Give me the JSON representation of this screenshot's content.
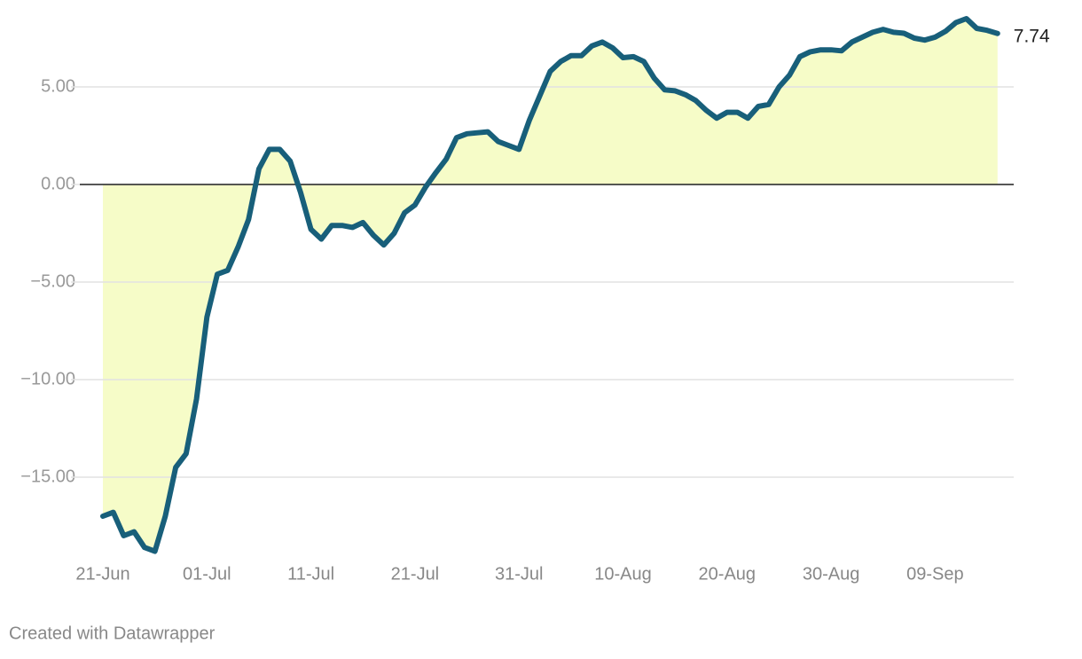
{
  "chart_data": {
    "type": "area-line",
    "categories": [
      "21-Jun",
      null,
      null,
      null,
      null,
      null,
      null,
      null,
      null,
      null,
      "01-Jul",
      null,
      null,
      null,
      null,
      null,
      null,
      null,
      null,
      null,
      "11-Jul",
      null,
      null,
      null,
      null,
      null,
      null,
      null,
      null,
      null,
      "21-Jul",
      null,
      null,
      null,
      null,
      null,
      null,
      null,
      null,
      null,
      "31-Jul",
      null,
      null,
      null,
      null,
      null,
      null,
      null,
      null,
      null,
      "10-Aug",
      null,
      null,
      null,
      null,
      null,
      null,
      null,
      null,
      null,
      "20-Aug",
      null,
      null,
      null,
      null,
      null,
      null,
      null,
      null,
      null,
      "30-Aug",
      null,
      null,
      null,
      null,
      null,
      null,
      null,
      null,
      null,
      "09-Sep",
      null,
      null,
      null,
      null,
      null,
      null
    ],
    "values": [
      -17.0,
      -16.8,
      -18.0,
      -17.8,
      -18.6,
      -18.8,
      -17.0,
      -14.5,
      -13.8,
      -11.0,
      -6.8,
      -4.6,
      -4.4,
      -3.2,
      -1.8,
      0.8,
      1.8,
      1.8,
      1.2,
      -0.4,
      -2.3,
      -2.8,
      -2.1,
      -2.1,
      -2.2,
      -1.95,
      -2.6,
      -3.1,
      -2.5,
      -1.45,
      -1.05,
      -0.15,
      0.6,
      1.3,
      2.4,
      2.6,
      2.65,
      2.7,
      2.2,
      2.0,
      1.8,
      3.3,
      4.55,
      5.8,
      6.3,
      6.6,
      6.6,
      7.1,
      7.3,
      7.0,
      6.5,
      6.55,
      6.3,
      5.45,
      4.85,
      4.8,
      4.6,
      4.3,
      3.8,
      3.4,
      3.7,
      3.7,
      3.4,
      4.0,
      4.1,
      5.0,
      5.6,
      6.55,
      6.8,
      6.9,
      6.9,
      6.85,
      7.3,
      7.55,
      7.8,
      7.95,
      7.8,
      7.75,
      7.5,
      7.4,
      7.55,
      7.85,
      8.3,
      8.5,
      8.0,
      7.9,
      7.74
    ],
    "color": "#185f7a",
    "fill_color": "#f6fcc8",
    "ylim": [
      -19,
      9
    ],
    "yticks": [
      {
        "value": -15,
        "label": "−15.00"
      },
      {
        "value": -10,
        "label": "−10.00"
      },
      {
        "value": -5,
        "label": "−5.00"
      },
      {
        "value": 0,
        "label": "0.00"
      },
      {
        "value": 5,
        "label": "5.00"
      }
    ],
    "grid": true,
    "end_label": true
  },
  "credit": "Created with Datawrapper"
}
